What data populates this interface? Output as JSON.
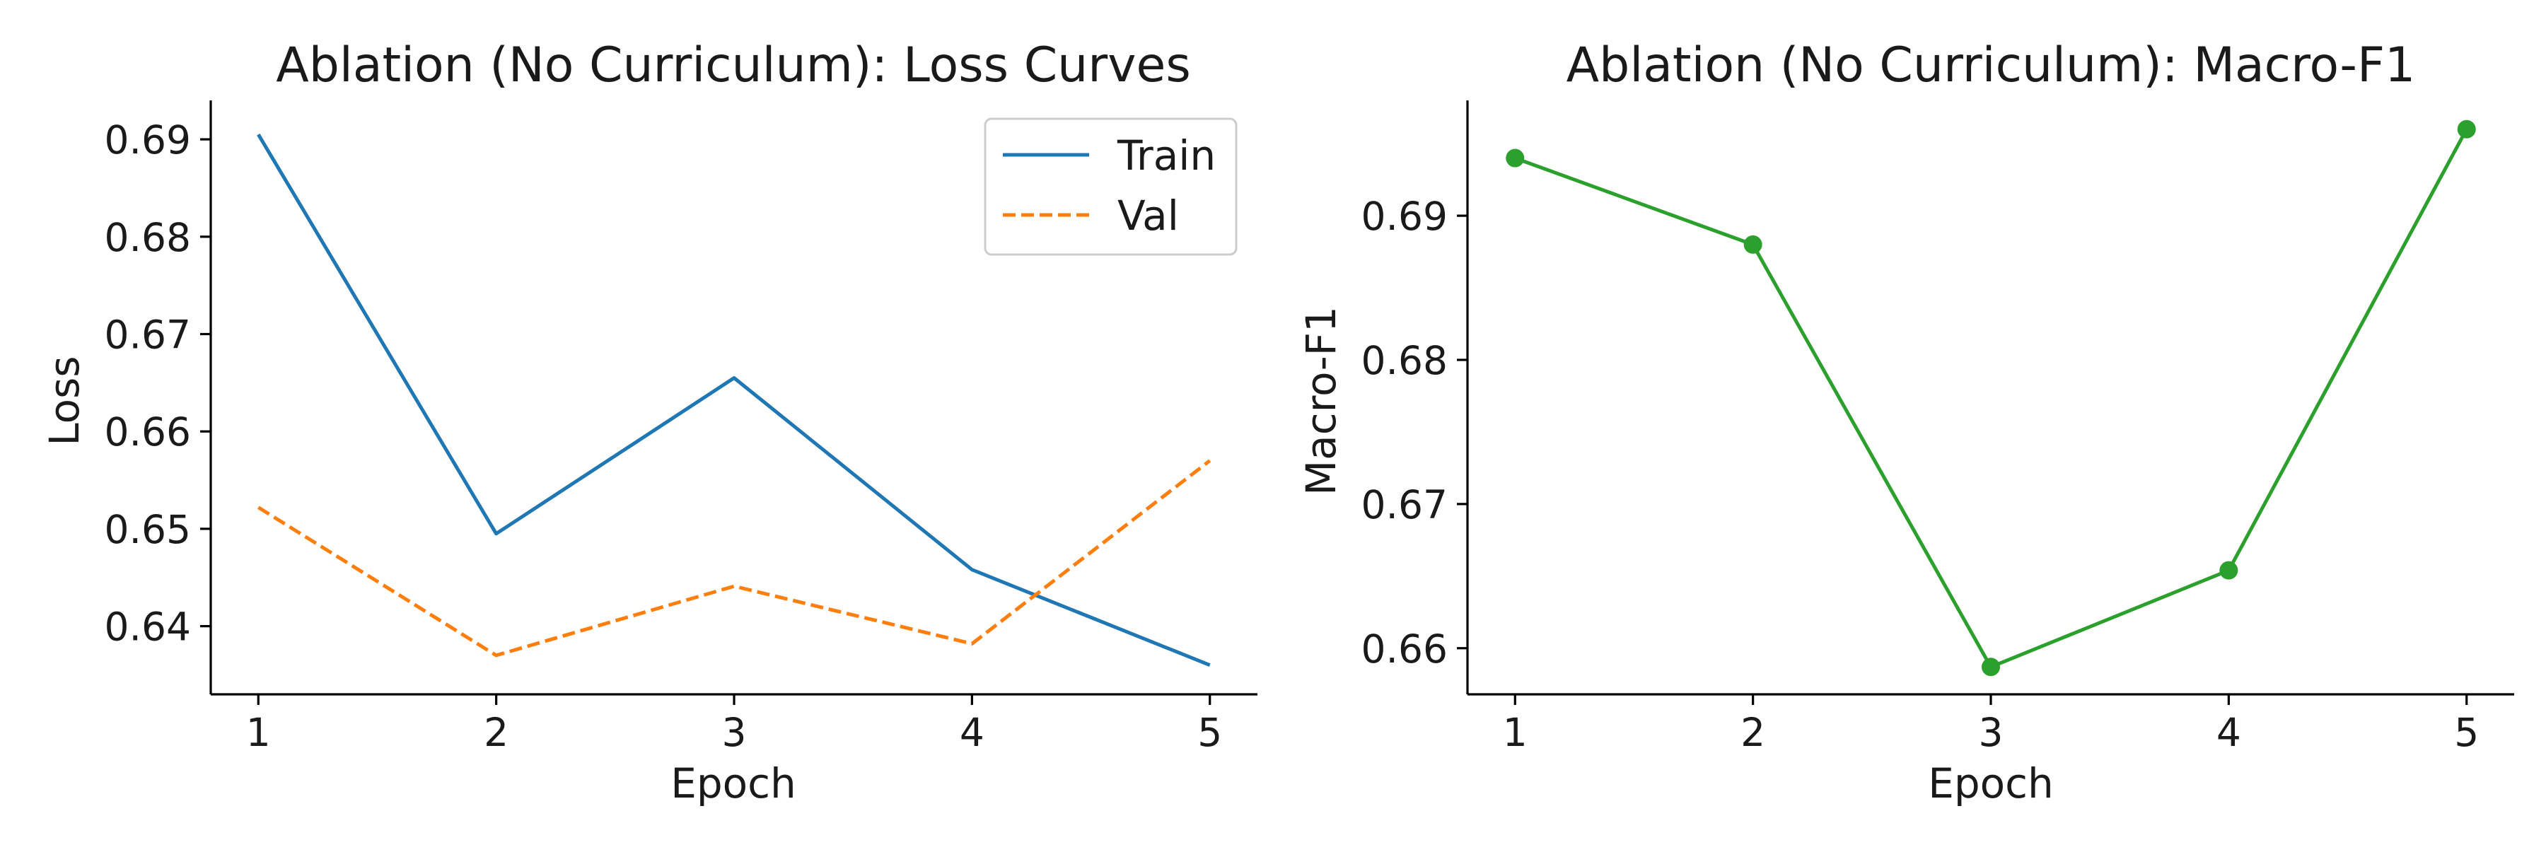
{
  "chart_data": [
    {
      "type": "line",
      "title": "Ablation (No Curriculum): Loss Curves",
      "xlabel": "Epoch",
      "ylabel": "Loss",
      "x": [
        1,
        2,
        3,
        4,
        5
      ],
      "xticks": [
        "1",
        "2",
        "3",
        "4",
        "5"
      ],
      "xlim": [
        0.8,
        5.2
      ],
      "ylim": [
        0.633,
        0.694
      ],
      "yticks": [
        "0.64",
        "0.65",
        "0.66",
        "0.67",
        "0.68",
        "0.69"
      ],
      "ytick_values": [
        0.64,
        0.65,
        0.66,
        0.67,
        0.68,
        0.69
      ],
      "grid": false,
      "legend": "top-right",
      "series": [
        {
          "name": "Train",
          "values": [
            0.6905,
            0.6495,
            0.6655,
            0.6458,
            0.636
          ],
          "color": "#1f77b4",
          "style": "solid"
        },
        {
          "name": "Val",
          "values": [
            0.6522,
            0.637,
            0.6441,
            0.6382,
            0.657
          ],
          "color": "#ff7f0e",
          "style": "dashed"
        }
      ]
    },
    {
      "type": "line",
      "title": "Ablation (No Curriculum): Macro-F1",
      "xlabel": "Epoch",
      "ylabel": "Macro-F1",
      "x": [
        1,
        2,
        3,
        4,
        5
      ],
      "xticks": [
        "1",
        "2",
        "3",
        "4",
        "5"
      ],
      "xlim": [
        0.8,
        5.2
      ],
      "ylim": [
        0.6568,
        0.698
      ],
      "yticks": [
        "0.66",
        "0.67",
        "0.68",
        "0.69"
      ],
      "ytick_values": [
        0.66,
        0.67,
        0.68,
        0.69
      ],
      "grid": false,
      "legend": "none",
      "series": [
        {
          "values": [
            0.694,
            0.688,
            0.6587,
            0.6654,
            0.696
          ],
          "color": "#2ca02c",
          "style": "solid",
          "markers": true
        }
      ]
    }
  ]
}
